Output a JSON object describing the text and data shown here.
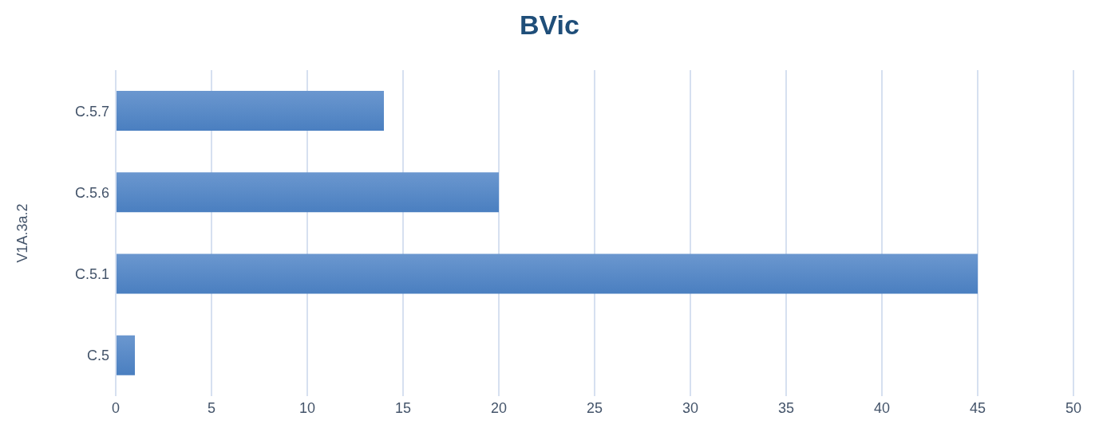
{
  "chart_data": {
    "type": "bar",
    "orientation": "horizontal",
    "title": "BVic",
    "ylabel": "V1A.3a.2",
    "categories": [
      "C.5.7",
      "C.5.6",
      "C.5.1",
      "C.5"
    ],
    "values": [
      14,
      20,
      45,
      1
    ],
    "color": "#4a7fc0",
    "xlim": [
      0,
      50
    ],
    "xticks": [
      0,
      5,
      10,
      15,
      20,
      25,
      30,
      35,
      40,
      45,
      50
    ],
    "grid": "x",
    "legend": false
  }
}
